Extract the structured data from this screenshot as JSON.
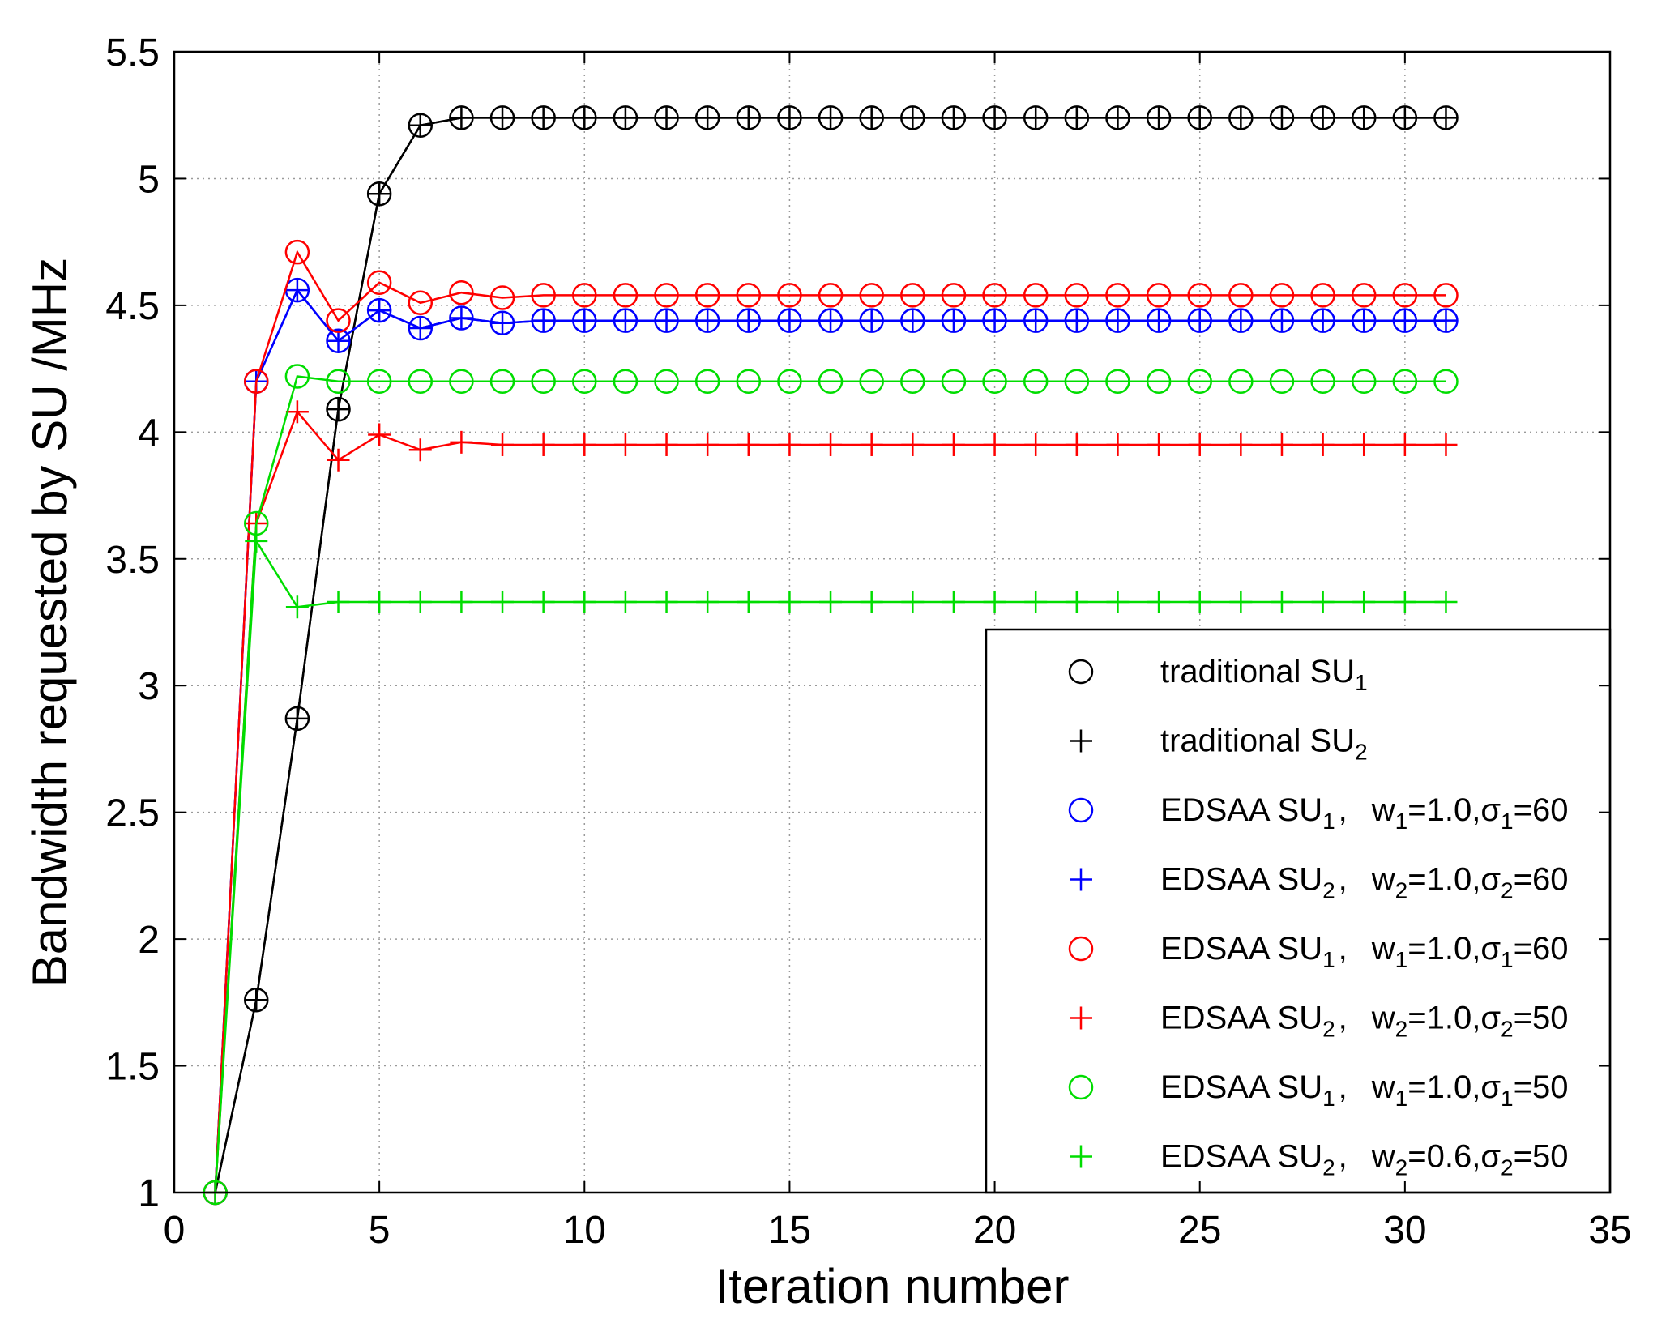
{
  "chart_data": {
    "type": "line",
    "title": "",
    "xlabel": "Iteration number",
    "ylabel": "Bandwidth requested by SU /MHz",
    "xlim": [
      0,
      35
    ],
    "ylim": [
      1,
      5.5
    ],
    "xticks": [
      0,
      5,
      10,
      15,
      20,
      25,
      30,
      35
    ],
    "yticks": [
      1,
      1.5,
      2,
      2.5,
      3,
      3.5,
      4,
      4.5,
      5,
      5.5
    ],
    "xtick_labels": [
      "0",
      "5",
      "10",
      "15",
      "20",
      "25",
      "30",
      "35"
    ],
    "ytick_labels": [
      "1",
      "1.5",
      "2",
      "2.5",
      "3",
      "3.5",
      "4",
      "4.5",
      "5",
      "5.5"
    ],
    "grid": true,
    "legend_position": "bottom-right",
    "x": [
      1,
      2,
      3,
      4,
      5,
      6,
      7,
      8,
      9,
      10,
      11,
      12,
      13,
      14,
      15,
      16,
      17,
      18,
      19,
      20,
      21,
      22,
      23,
      24,
      25,
      26,
      27,
      28,
      29,
      30,
      31
    ],
    "series": [
      {
        "name": "traditional SU1",
        "legend": {
          "main": "traditional SU",
          "sub": "1",
          "params": []
        },
        "color": "#000000",
        "marker": "circle",
        "values": [
          1.0,
          1.76,
          2.87,
          4.09,
          4.94,
          5.21,
          5.24,
          5.24,
          5.24,
          5.24,
          5.24,
          5.24,
          5.24,
          5.24,
          5.24,
          5.24,
          5.24,
          5.24,
          5.24,
          5.24,
          5.24,
          5.24,
          5.24,
          5.24,
          5.24,
          5.24,
          5.24,
          5.24,
          5.24,
          5.24,
          5.24
        ]
      },
      {
        "name": "traditional SU2",
        "legend": {
          "main": "traditional SU",
          "sub": "2",
          "params": []
        },
        "color": "#000000",
        "marker": "plus",
        "values": [
          1.0,
          1.76,
          2.87,
          4.09,
          4.94,
          5.21,
          5.24,
          5.24,
          5.24,
          5.24,
          5.24,
          5.24,
          5.24,
          5.24,
          5.24,
          5.24,
          5.24,
          5.24,
          5.24,
          5.24,
          5.24,
          5.24,
          5.24,
          5.24,
          5.24,
          5.24,
          5.24,
          5.24,
          5.24,
          5.24,
          5.24
        ]
      },
      {
        "name": "EDSAA SU1, w1=1.0,σ1=60",
        "legend": {
          "main": "EDSAA SU",
          "sub": "1",
          "params": [
            {
              "t": "w"
            },
            {
              "t": "1",
              "sub": true
            },
            {
              "t": "=1.0,σ"
            },
            {
              "t": "1",
              "sub": true
            },
            {
              "t": "=60"
            }
          ]
        },
        "color": "#0000ff",
        "marker": "circle",
        "values": [
          1.0,
          4.2,
          4.56,
          4.36,
          4.48,
          4.41,
          4.45,
          4.43,
          4.44,
          4.44,
          4.44,
          4.44,
          4.44,
          4.44,
          4.44,
          4.44,
          4.44,
          4.44,
          4.44,
          4.44,
          4.44,
          4.44,
          4.44,
          4.44,
          4.44,
          4.44,
          4.44,
          4.44,
          4.44,
          4.44,
          4.44
        ]
      },
      {
        "name": "EDSAA SU2, w2=1.0,σ2=60",
        "legend": {
          "main": "EDSAA SU",
          "sub": "2",
          "params": [
            {
              "t": "w"
            },
            {
              "t": "2",
              "sub": true
            },
            {
              "t": "=1.0,σ"
            },
            {
              "t": "2",
              "sub": true
            },
            {
              "t": "=60"
            }
          ]
        },
        "color": "#0000ff",
        "marker": "plus",
        "values": [
          1.0,
          4.2,
          4.56,
          4.36,
          4.48,
          4.41,
          4.45,
          4.43,
          4.44,
          4.44,
          4.44,
          4.44,
          4.44,
          4.44,
          4.44,
          4.44,
          4.44,
          4.44,
          4.44,
          4.44,
          4.44,
          4.44,
          4.44,
          4.44,
          4.44,
          4.44,
          4.44,
          4.44,
          4.44,
          4.44,
          4.44
        ]
      },
      {
        "name": "EDSAA SU1, w1=1.0,σ1=60 (red)",
        "legend": {
          "main": "EDSAA SU",
          "sub": "1",
          "params": [
            {
              "t": "w"
            },
            {
              "t": "1",
              "sub": true
            },
            {
              "t": "=1.0,σ"
            },
            {
              "t": "1",
              "sub": true
            },
            {
              "t": "=60"
            }
          ]
        },
        "color": "#ff0000",
        "marker": "circle",
        "values": [
          1.0,
          4.2,
          4.71,
          4.44,
          4.59,
          4.51,
          4.55,
          4.53,
          4.54,
          4.54,
          4.54,
          4.54,
          4.54,
          4.54,
          4.54,
          4.54,
          4.54,
          4.54,
          4.54,
          4.54,
          4.54,
          4.54,
          4.54,
          4.54,
          4.54,
          4.54,
          4.54,
          4.54,
          4.54,
          4.54,
          4.54
        ]
      },
      {
        "name": "EDSAA SU2, w2=1.0,σ2=50",
        "legend": {
          "main": "EDSAA SU",
          "sub": "2",
          "params": [
            {
              "t": "w"
            },
            {
              "t": "2",
              "sub": true
            },
            {
              "t": "=1.0,σ"
            },
            {
              "t": "2",
              "sub": true
            },
            {
              "t": "=50"
            }
          ]
        },
        "color": "#ff0000",
        "marker": "plus",
        "values": [
          1.0,
          3.64,
          4.08,
          3.89,
          3.99,
          3.93,
          3.96,
          3.95,
          3.95,
          3.95,
          3.95,
          3.95,
          3.95,
          3.95,
          3.95,
          3.95,
          3.95,
          3.95,
          3.95,
          3.95,
          3.95,
          3.95,
          3.95,
          3.95,
          3.95,
          3.95,
          3.95,
          3.95,
          3.95,
          3.95,
          3.95
        ]
      },
      {
        "name": "EDSAA SU1, w1=1.0,σ1=50",
        "legend": {
          "main": "EDSAA SU",
          "sub": "1",
          "params": [
            {
              "t": "w"
            },
            {
              "t": "1",
              "sub": true
            },
            {
              "t": "=1.0,σ"
            },
            {
              "t": "1",
              "sub": true
            },
            {
              "t": "=50"
            }
          ]
        },
        "color": "#00dd00",
        "marker": "circle",
        "values": [
          1.0,
          3.64,
          4.22,
          4.2,
          4.2,
          4.2,
          4.2,
          4.2,
          4.2,
          4.2,
          4.2,
          4.2,
          4.2,
          4.2,
          4.2,
          4.2,
          4.2,
          4.2,
          4.2,
          4.2,
          4.2,
          4.2,
          4.2,
          4.2,
          4.2,
          4.2,
          4.2,
          4.2,
          4.2,
          4.2,
          4.2
        ]
      },
      {
        "name": "EDSAA SU2, w2=0.6,σ2=50",
        "legend": {
          "main": "EDSAA SU",
          "sub": "2",
          "params": [
            {
              "t": "w"
            },
            {
              "t": "2",
              "sub": true
            },
            {
              "t": "=0.6,σ"
            },
            {
              "t": "2",
              "sub": true
            },
            {
              "t": "=50"
            }
          ]
        },
        "color": "#00dd00",
        "marker": "plus",
        "values": [
          1.0,
          3.57,
          3.31,
          3.33,
          3.33,
          3.33,
          3.33,
          3.33,
          3.33,
          3.33,
          3.33,
          3.33,
          3.33,
          3.33,
          3.33,
          3.33,
          3.33,
          3.33,
          3.33,
          3.33,
          3.33,
          3.33,
          3.33,
          3.33,
          3.33,
          3.33,
          3.33,
          3.33,
          3.33,
          3.33,
          3.33
        ]
      }
    ]
  }
}
